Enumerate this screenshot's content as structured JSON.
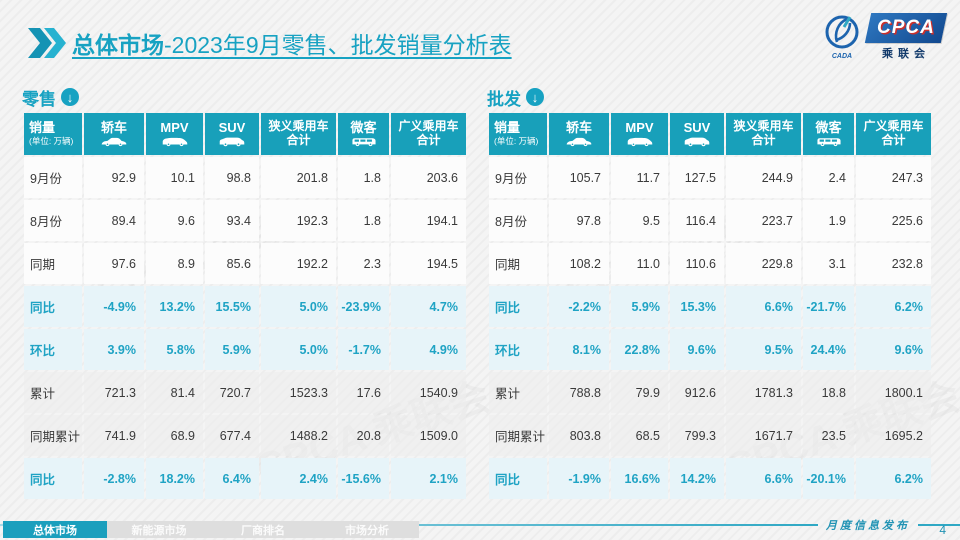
{
  "title": {
    "bold": "总体市场",
    "rest": "-2023年9月零售、批发销量分析表"
  },
  "logo": {
    "cpca": "CPCA",
    "sub": "乘联会",
    "emblem": "CADA"
  },
  "table_columns": {
    "first": {
      "title": "销量",
      "subtitle": "(单位: 万辆)"
    },
    "cols": [
      {
        "lines": [
          "轿车"
        ],
        "icon": "sedan-icon"
      },
      {
        "lines": [
          "MPV"
        ],
        "icon": "mpv-icon"
      },
      {
        "lines": [
          "SUV"
        ],
        "icon": "suv-icon"
      },
      {
        "lines": [
          "狭义乘用车",
          "合计"
        ],
        "icon": null
      },
      {
        "lines": [
          "微客"
        ],
        "icon": "van-icon"
      },
      {
        "lines": [
          "广义乘用车",
          "合计"
        ],
        "icon": null
      }
    ]
  },
  "tables": [
    {
      "name": "零售",
      "rows": [
        {
          "label": "9月份",
          "style": "num",
          "values": [
            "92.9",
            "10.1",
            "98.8",
            "201.8",
            "1.8",
            "203.6"
          ]
        },
        {
          "label": "8月份",
          "style": "num",
          "values": [
            "89.4",
            "9.6",
            "93.4",
            "192.3",
            "1.8",
            "194.1"
          ]
        },
        {
          "label": "同期",
          "style": "num",
          "values": [
            "97.6",
            "8.9",
            "85.6",
            "192.2",
            "2.3",
            "194.5"
          ]
        },
        {
          "label": "同比",
          "style": "pct",
          "values": [
            "-4.9%",
            "13.2%",
            "15.5%",
            "5.0%",
            "-23.9%",
            "4.7%"
          ]
        },
        {
          "label": "环比",
          "style": "pct",
          "values": [
            "3.9%",
            "5.8%",
            "5.9%",
            "5.0%",
            "-1.7%",
            "4.9%"
          ]
        },
        {
          "label": "累计",
          "style": "cum",
          "values": [
            "721.3",
            "81.4",
            "720.7",
            "1523.3",
            "17.6",
            "1540.9"
          ]
        },
        {
          "label": "同期累计",
          "style": "cum",
          "values": [
            "741.9",
            "68.9",
            "677.4",
            "1488.2",
            "20.8",
            "1509.0"
          ]
        },
        {
          "label": "同比",
          "style": "pct",
          "values": [
            "-2.8%",
            "18.2%",
            "6.4%",
            "2.4%",
            "-15.6%",
            "2.1%"
          ]
        }
      ]
    },
    {
      "name": "批发",
      "rows": [
        {
          "label": "9月份",
          "style": "num",
          "values": [
            "105.7",
            "11.7",
            "127.5",
            "244.9",
            "2.4",
            "247.3"
          ]
        },
        {
          "label": "8月份",
          "style": "num",
          "values": [
            "97.8",
            "9.5",
            "116.4",
            "223.7",
            "1.9",
            "225.6"
          ]
        },
        {
          "label": "同期",
          "style": "num",
          "values": [
            "108.2",
            "11.0",
            "110.6",
            "229.8",
            "3.1",
            "232.8"
          ]
        },
        {
          "label": "同比",
          "style": "pct",
          "values": [
            "-2.2%",
            "5.9%",
            "15.3%",
            "6.6%",
            "-21.7%",
            "6.2%"
          ]
        },
        {
          "label": "环比",
          "style": "pct",
          "values": [
            "8.1%",
            "22.8%",
            "9.6%",
            "9.5%",
            "24.4%",
            "9.6%"
          ]
        },
        {
          "label": "累计",
          "style": "cum",
          "values": [
            "788.8",
            "79.9",
            "912.6",
            "1781.3",
            "18.8",
            "1800.1"
          ]
        },
        {
          "label": "同期累计",
          "style": "cum",
          "values": [
            "803.8",
            "68.5",
            "799.3",
            "1671.7",
            "23.5",
            "1695.2"
          ]
        },
        {
          "label": "同比",
          "style": "pct",
          "values": [
            "-1.9%",
            "16.6%",
            "14.2%",
            "6.6%",
            "-20.1%",
            "6.2%"
          ]
        }
      ]
    }
  ],
  "footer": {
    "tabs": [
      "总体市场",
      "新能源市场",
      "厂商排名",
      "市场分析"
    ],
    "active_tab": "总体市场",
    "note": "月度信息发布",
    "page": "4"
  },
  "colors": {
    "accent_teal": "#18a0ba",
    "pct_text": "#1fa3c4",
    "pct_row_bg": "#e7f4f9",
    "logo_blue": "#12498f",
    "logo_red": "#c9302c"
  },
  "watermark": "CPCA 乘联会"
}
